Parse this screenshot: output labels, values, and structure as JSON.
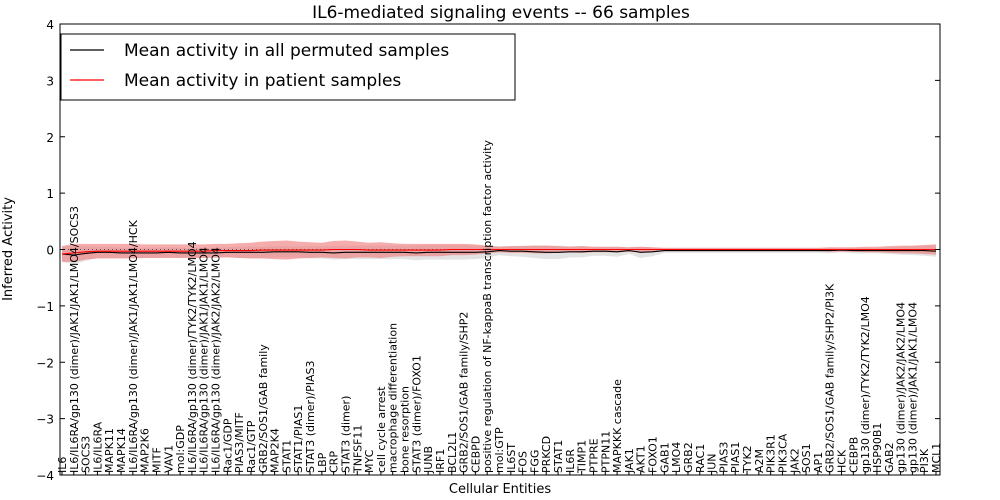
{
  "chart_data": {
    "type": "line",
    "title": "IL6-mediated signaling events -- 66 samples",
    "xlabel": "Cellular Entities",
    "ylabel": "Inferred Activity",
    "ylim": [
      -4,
      4
    ],
    "yticks": [
      -4,
      -3,
      -2,
      -1,
      0,
      1,
      2,
      3,
      4
    ],
    "legend": {
      "placement": "top-left"
    },
    "categories": [
      "IL6",
      "IL6/IL6RA/gp130 (dimer)/JAK1/JAK1/LMO4/SOCS3",
      "SOCS3",
      "IL6/IL6RA",
      "MAPK11",
      "MAPK14",
      "IL6/IL6RA/gp130 (dimer)/JAK1/JAK1/LMO4/HCK",
      "MAP2K6",
      "MITF",
      "VAV1",
      "mol:GDP",
      "IL6/IL6RA/gp130 (dimer)/TYK2/TYK2/LMO4",
      "IL6/IL6RA/gp130 (dimer)/JAK1/JAK1/LMO4",
      "IL6/IL6RA/gp130 (dimer)/JAK2/JAK2/LMO4",
      "Rac1/GDP",
      "PIAS3/MITF",
      "Rac1/GTP",
      "GRB2/SOS1/GAB family",
      "MAP2K4",
      "STAT1",
      "STAT1/PIAS1",
      "STAT3 (dimer)/PIAS3",
      "LBP",
      "CRP",
      "STAT3 (dimer)",
      "TNFSF11",
      "MYC",
      "cell cycle arrest",
      "macrophage differentiation",
      "bone resorption",
      "STAT3 (dimer)/FOXO1",
      "JUNB",
      "IRF1",
      "BCL2L1",
      "GRB2/SOS1/GAB family/SHP2",
      "CEBPD",
      "positive regulation of NF-kappaB transcription factor activity",
      "mol:GTP",
      "IL6ST",
      "FOS",
      "FGG",
      "PRKCD",
      "STAT1",
      "IL6R",
      "TIMP1",
      "PTPRE",
      "PTPN11",
      "MAPKKK cascade",
      "JAK1",
      "AKT1",
      "FOXO1",
      "GAB1",
      "LMO4",
      "GRB2",
      "RAC1",
      "JUN",
      "PIAS3",
      "PIAS1",
      "TYK2",
      "A2M",
      "PIK3R1",
      "PIK3CA",
      "JAK2",
      "SOS1",
      "AP1",
      "GRB2/SOS1/GAB family/SHP2/PI3K",
      "HCK",
      "CEBPB",
      "gp130 (dimer)/TYK2/TYK2/LMO4",
      "HSP90B1",
      "GAB2",
      "gp130 (dimer)/JAK2/JAK2/LMO4",
      "gp130 (dimer)/JAK1/JAK1/LMO4",
      "PI3K",
      "MCL1"
    ],
    "series": [
      {
        "name": "Mean activity in all permuted samples",
        "color": "#000000",
        "values": [
          -0.08,
          -0.1,
          -0.07,
          -0.05,
          -0.05,
          -0.06,
          -0.06,
          -0.06,
          -0.06,
          -0.05,
          -0.06,
          -0.06,
          -0.06,
          -0.06,
          -0.05,
          -0.05,
          -0.05,
          -0.05,
          -0.04,
          -0.04,
          -0.04,
          -0.05,
          -0.05,
          -0.06,
          -0.05,
          -0.05,
          -0.05,
          -0.05,
          -0.05,
          -0.05,
          -0.06,
          -0.05,
          -0.05,
          -0.05,
          -0.05,
          -0.05,
          -0.04,
          -0.02,
          -0.03,
          -0.03,
          -0.04,
          -0.05,
          -0.05,
          -0.04,
          -0.04,
          -0.03,
          -0.03,
          -0.04,
          -0.02,
          -0.05,
          -0.04,
          -0.02,
          -0.02,
          -0.02,
          -0.02,
          -0.02,
          -0.02,
          -0.02,
          -0.02,
          -0.02,
          -0.02,
          -0.02,
          -0.02,
          -0.02,
          -0.02,
          -0.02,
          -0.01,
          -0.02,
          -0.02,
          -0.02,
          -0.02,
          -0.02,
          -0.02,
          -0.02,
          -0.03
        ],
        "band": [
          0.14,
          0.16,
          0.13,
          0.1,
          0.1,
          0.09,
          0.09,
          0.09,
          0.09,
          0.09,
          0.09,
          0.09,
          0.09,
          0.09,
          0.09,
          0.1,
          0.1,
          0.1,
          0.1,
          0.1,
          0.1,
          0.11,
          0.11,
          0.12,
          0.12,
          0.12,
          0.12,
          0.12,
          0.12,
          0.12,
          0.13,
          0.13,
          0.13,
          0.13,
          0.13,
          0.12,
          0.11,
          0.08,
          0.09,
          0.1,
          0.11,
          0.12,
          0.12,
          0.1,
          0.1,
          0.08,
          0.08,
          0.09,
          0.06,
          0.1,
          0.08,
          0.04,
          0.04,
          0.04,
          0.04,
          0.04,
          0.04,
          0.04,
          0.04,
          0.04,
          0.04,
          0.04,
          0.04,
          0.04,
          0.04,
          0.05,
          0.04,
          0.05,
          0.05,
          0.05,
          0.06,
          0.07,
          0.08,
          0.09,
          0.1
        ]
      },
      {
        "name": "Mean activity in patient samples",
        "color": "#ff0000",
        "values": [
          -0.08,
          -0.06,
          -0.04,
          -0.03,
          -0.03,
          -0.03,
          -0.03,
          -0.03,
          -0.03,
          -0.03,
          -0.03,
          -0.03,
          -0.03,
          -0.02,
          -0.02,
          -0.02,
          -0.02,
          -0.01,
          -0.01,
          -0.01,
          -0.01,
          -0.01,
          -0.01,
          0.0,
          0.0,
          0.0,
          -0.01,
          -0.01,
          -0.01,
          -0.01,
          -0.01,
          -0.01,
          -0.01,
          0.0,
          0.0,
          0.0,
          0.0,
          0.0,
          0.0,
          0.0,
          0.0,
          0.0,
          0.0,
          0.0,
          0.0,
          0.0,
          0.0,
          0.0,
          0.0,
          0.0,
          0.0,
          0.0,
          0.0,
          0.0,
          0.0,
          0.0,
          0.0,
          0.0,
          0.0,
          0.0,
          0.0,
          0.0,
          0.0,
          0.0,
          0.0,
          0.0,
          0.0,
          0.0,
          0.0,
          0.0,
          0.0,
          0.0,
          0.0,
          0.0,
          0.0
        ],
        "band": [
          0.14,
          0.16,
          0.14,
          0.13,
          0.13,
          0.13,
          0.13,
          0.12,
          0.12,
          0.12,
          0.12,
          0.12,
          0.12,
          0.12,
          0.12,
          0.13,
          0.14,
          0.15,
          0.16,
          0.17,
          0.15,
          0.14,
          0.13,
          0.15,
          0.16,
          0.14,
          0.13,
          0.14,
          0.12,
          0.11,
          0.11,
          0.11,
          0.11,
          0.1,
          0.1,
          0.09,
          0.07,
          0.05,
          0.06,
          0.06,
          0.07,
          0.07,
          0.06,
          0.05,
          0.06,
          0.05,
          0.05,
          0.05,
          0.04,
          0.05,
          0.04,
          0.03,
          0.03,
          0.03,
          0.03,
          0.03,
          0.03,
          0.03,
          0.03,
          0.03,
          0.03,
          0.03,
          0.03,
          0.03,
          0.03,
          0.04,
          0.04,
          0.04,
          0.05,
          0.05,
          0.06,
          0.07,
          0.07,
          0.08,
          0.09
        ]
      }
    ]
  }
}
